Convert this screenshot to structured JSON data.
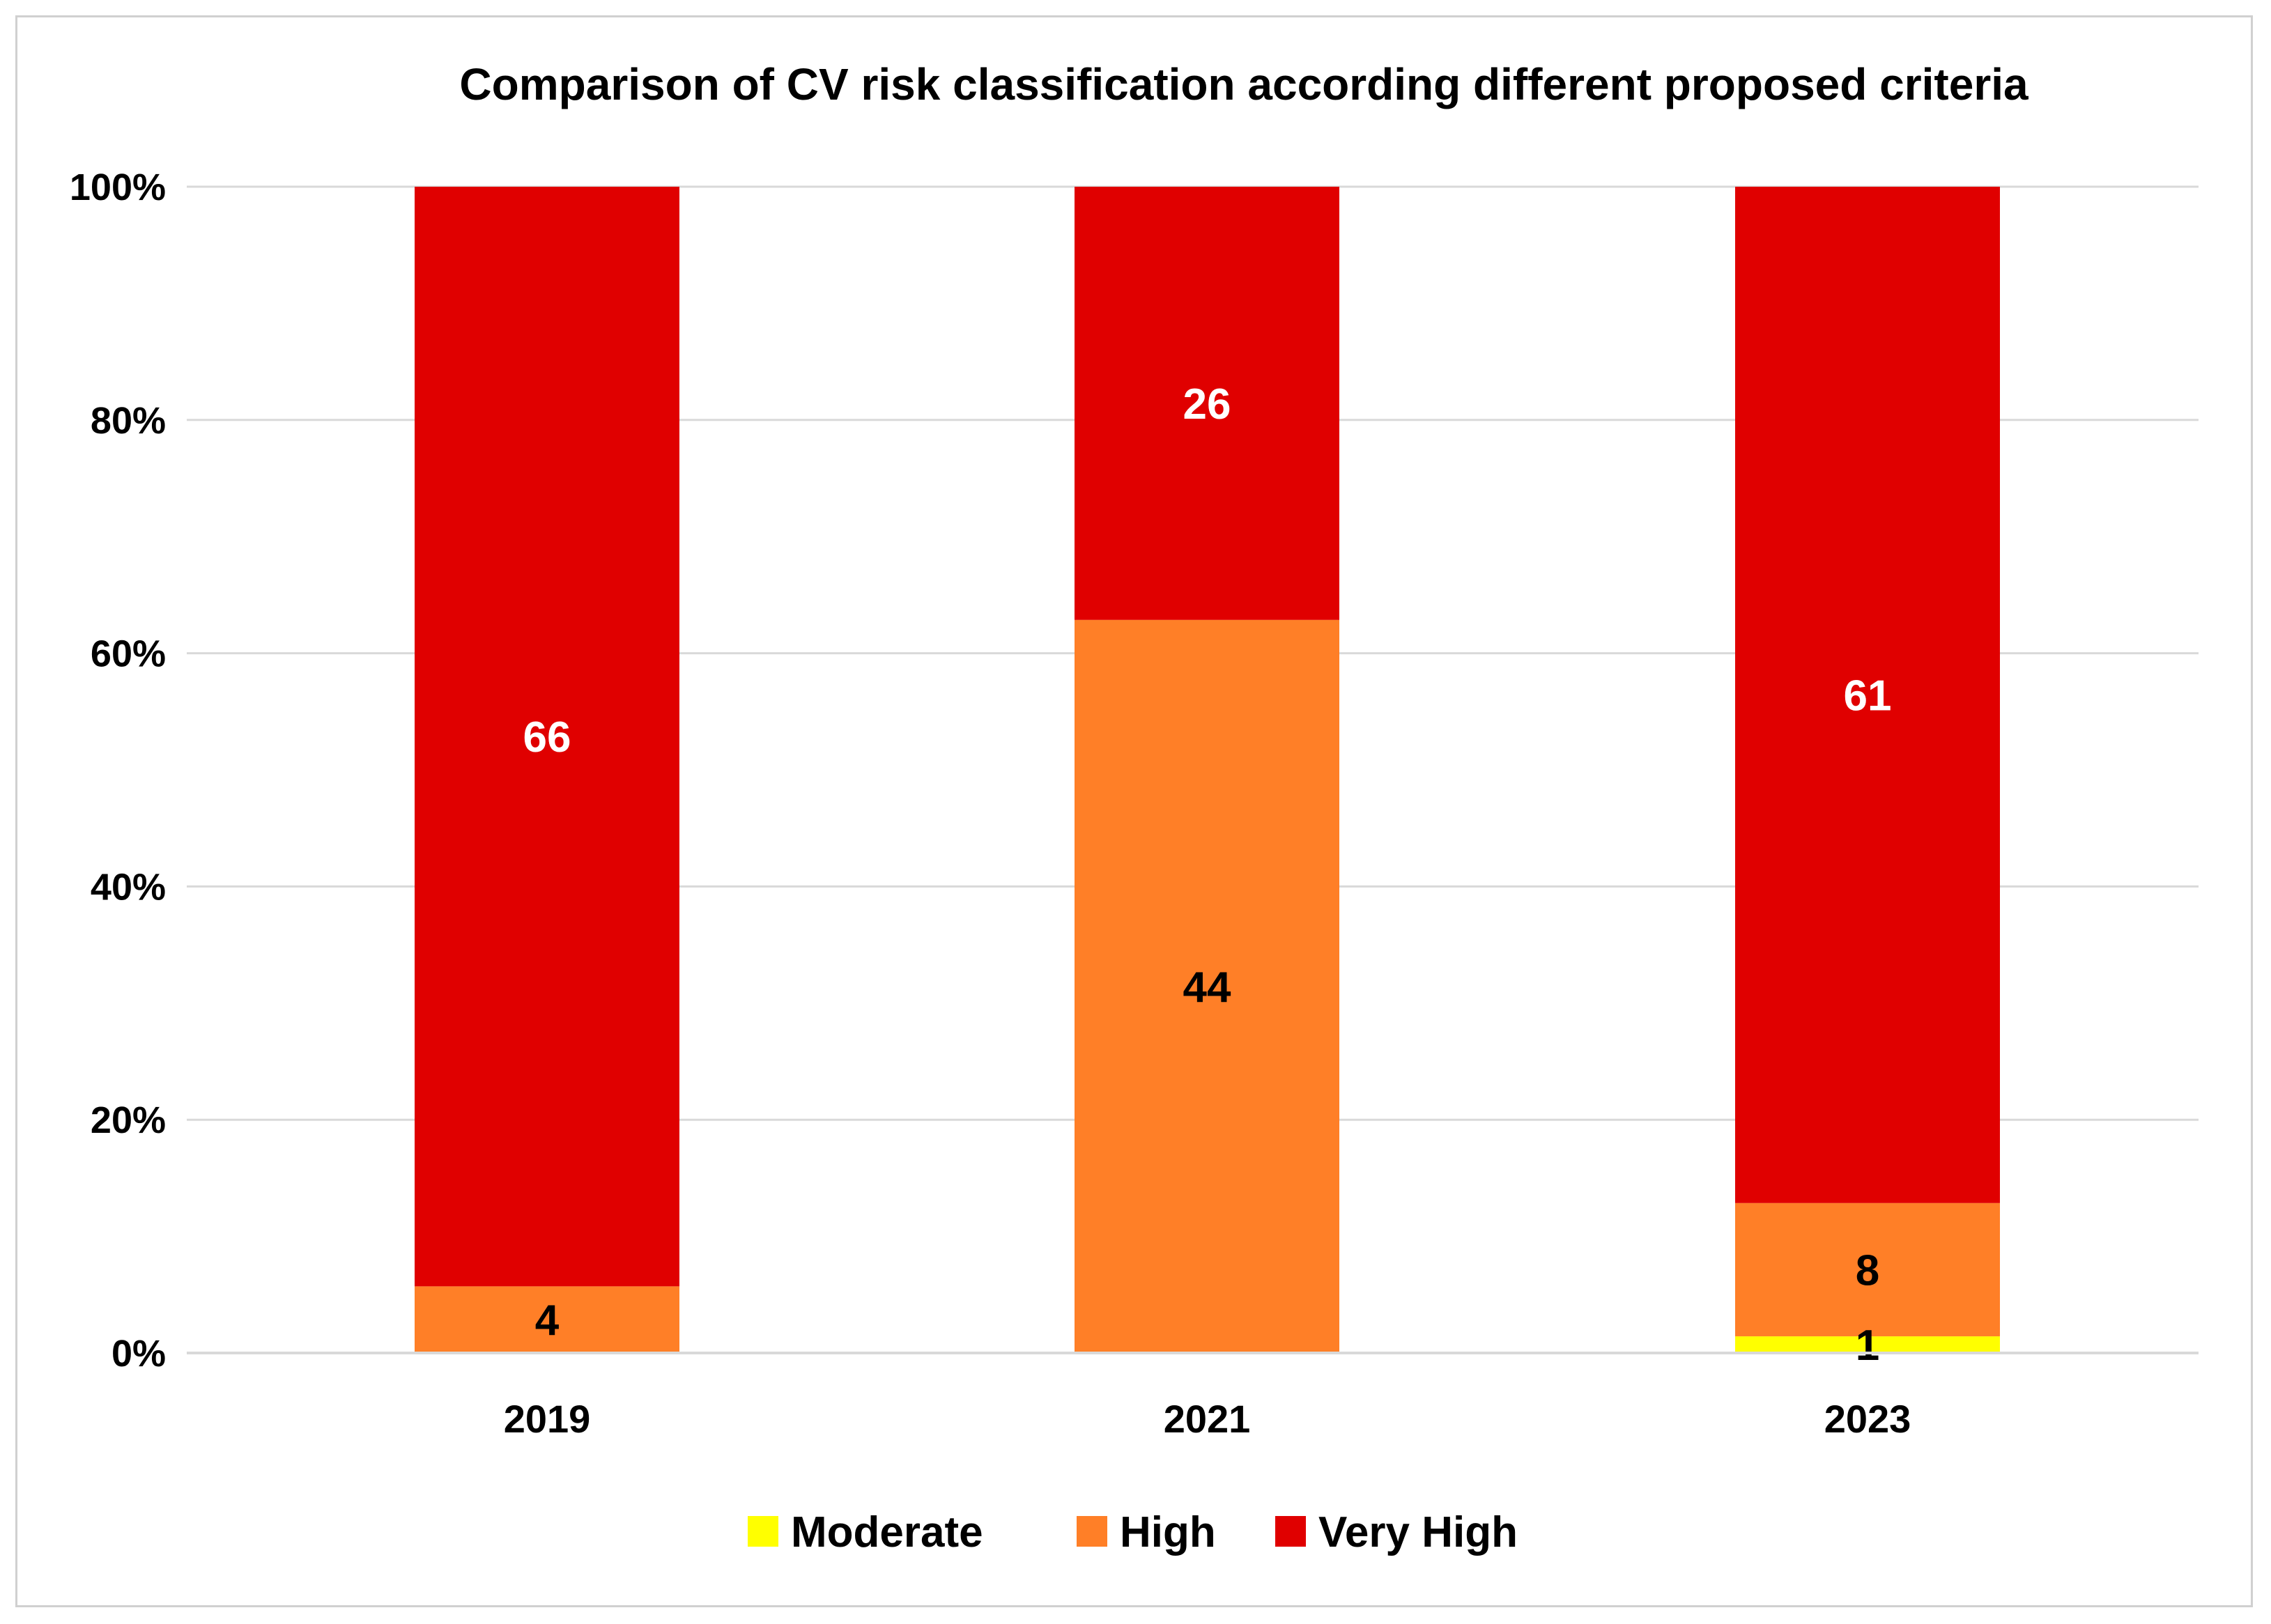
{
  "chart_data": {
    "type": "bar",
    "stacked": true,
    "percent_stacked": true,
    "title": "Comparison of CV risk classification according different proposed criteria",
    "categories": [
      "2019",
      "2021",
      "2023"
    ],
    "series": [
      {
        "name": "Moderate",
        "color": "#FFFF00",
        "values": [
          0,
          0,
          1
        ],
        "label_color": "#000000"
      },
      {
        "name": "High",
        "color": "#FF7F27",
        "values": [
          4,
          44,
          8
        ],
        "label_color": "#000000"
      },
      {
        "name": "Very High",
        "color": "#E00000",
        "values": [
          66,
          26,
          61
        ],
        "label_color": "#FFFFFF"
      }
    ],
    "y_ticks": [
      "0%",
      "20%",
      "40%",
      "60%",
      "80%",
      "100%"
    ],
    "ylim": [
      0,
      100
    ],
    "xlabel": "",
    "ylabel": "",
    "grid": true,
    "legend_position": "bottom-center",
    "gridline_color": "#D9D9D9"
  }
}
